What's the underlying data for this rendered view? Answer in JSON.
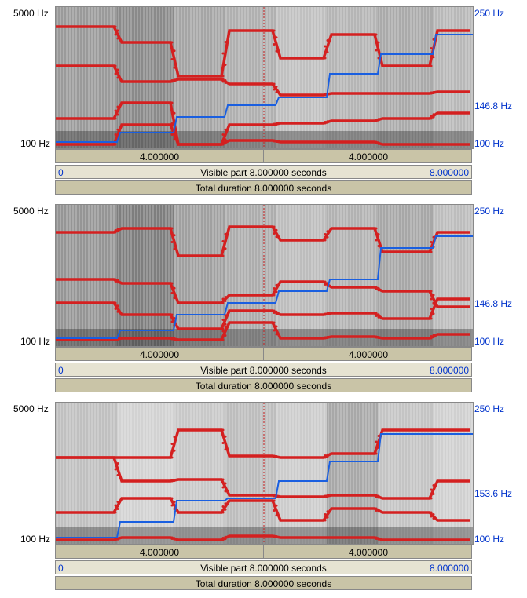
{
  "panels": [
    {
      "freq_top": "5000 Hz",
      "freq_bottom": "100 Hz",
      "pitch_top": "250 Hz",
      "pitch_mid": "146.8 Hz",
      "pitch_bottom": "100 Hz",
      "half_left": "4.000000",
      "half_right": "4.000000",
      "visible_start": "0",
      "visible_label": "Visible part 8.000000 seconds",
      "visible_end": "8.000000",
      "total_label": "Total duration 8.000000 seconds"
    },
    {
      "freq_top": "5000 Hz",
      "freq_bottom": "100 Hz",
      "pitch_top": "250 Hz",
      "pitch_mid": "146.8 Hz",
      "pitch_bottom": "100 Hz",
      "half_left": "4.000000",
      "half_right": "4.000000",
      "visible_start": "0",
      "visible_label": "Visible part 8.000000 seconds",
      "visible_end": "8.000000",
      "total_label": "Total duration 8.000000 seconds"
    },
    {
      "freq_top": "5000 Hz",
      "freq_bottom": "100 Hz",
      "pitch_top": "250 Hz",
      "pitch_mid": "153.6 Hz",
      "pitch_bottom": "100 Hz",
      "half_left": "4.000000",
      "half_right": "4.000000",
      "visible_start": "0",
      "visible_label": "Visible part 8.000000 seconds",
      "visible_end": "8.000000",
      "total_label": "Total duration 8.000000 seconds"
    }
  ],
  "colors": {
    "formant": "#d42020",
    "pitch": "#1a5fe0",
    "bar": "#c9c4a7",
    "label_blue": "#0033cc"
  }
}
